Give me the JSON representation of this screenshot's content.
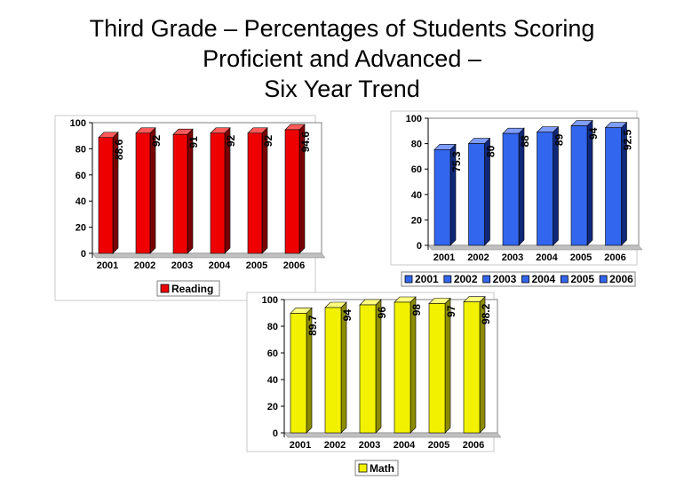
{
  "title_lines": [
    "Third Grade – Percentages of Students Scoring",
    "Proficient and Advanced –",
    "Six Year Trend"
  ],
  "chart_data": [
    {
      "type": "bar",
      "categories": [
        "2001",
        "2002",
        "2003",
        "2004",
        "2005",
        "2006"
      ],
      "series": [
        {
          "name": "Reading",
          "values": [
            88.6,
            92,
            91,
            92,
            92,
            94.6
          ]
        }
      ],
      "data_labels": [
        "88.6",
        "92",
        "91",
        "92",
        "92",
        "94.6"
      ],
      "ylim": [
        0,
        100
      ],
      "yticks": [
        0,
        20,
        40,
        60,
        80,
        100
      ],
      "legend": [
        "Reading"
      ],
      "legend_position": "bottom",
      "colors": {
        "front": "#ee0000",
        "side": "#7a0000",
        "top": "#ff5a5a"
      }
    },
    {
      "type": "bar",
      "categories": [
        "2001",
        "2002",
        "2003",
        "2004",
        "2005",
        "2006"
      ],
      "series": [
        {
          "name": "",
          "values": [
            75.3,
            80,
            88,
            89,
            94,
            92.5
          ]
        }
      ],
      "data_labels": [
        "75.3",
        "80",
        "88",
        "89",
        "94",
        "92.5"
      ],
      "ylim": [
        0,
        100
      ],
      "yticks": [
        0,
        20,
        40,
        60,
        80,
        100
      ],
      "legend": [
        "2001",
        "2002",
        "2003",
        "2004",
        "2005",
        "2006"
      ],
      "legend_position": "bottom",
      "colors": {
        "front": "#3366ee",
        "side": "#10287a",
        "top": "#7f9cff"
      }
    },
    {
      "type": "bar",
      "categories": [
        "2001",
        "2002",
        "2003",
        "2004",
        "2005",
        "2006"
      ],
      "series": [
        {
          "name": "Math",
          "values": [
            89.7,
            94,
            96,
            98,
            97,
            98.2
          ]
        }
      ],
      "data_labels": [
        "89.7",
        "94",
        "96",
        "98",
        "97",
        "98.2"
      ],
      "ylim": [
        0,
        100
      ],
      "yticks": [
        0,
        20,
        40,
        60,
        80,
        100
      ],
      "legend": [
        "Math"
      ],
      "legend_position": "bottom",
      "colors": {
        "front": "#f2f200",
        "side": "#8c8c00",
        "top": "#ffff80"
      }
    }
  ]
}
